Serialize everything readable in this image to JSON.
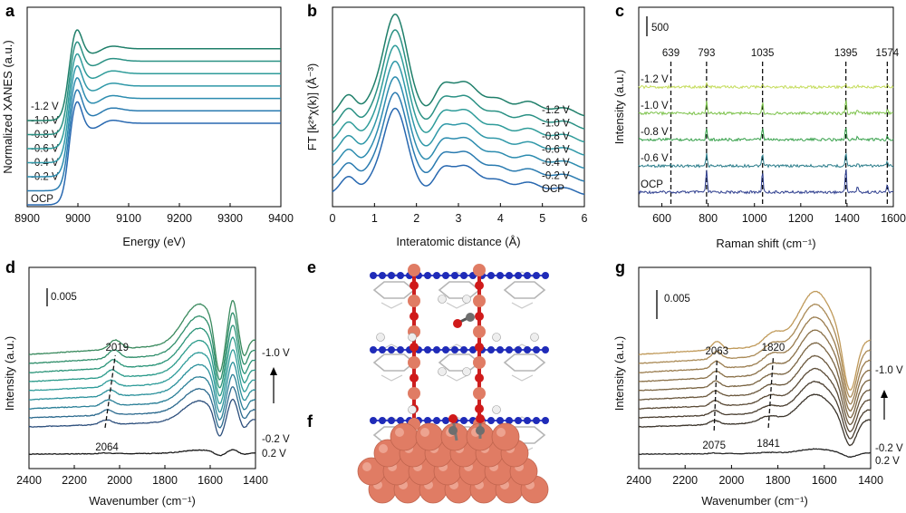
{
  "panel_letters": [
    "a",
    "b",
    "c",
    "d",
    "e",
    "f",
    "g"
  ],
  "colors": {
    "a_b_curves": [
      "#2868b0",
      "#2a7bb0",
      "#2c8caf",
      "#2f98a8",
      "#2f9c9a",
      "#2a9184",
      "#1f7f6a"
    ],
    "c_curves": [
      "#2f3f8f",
      "#2a7c8a",
      "#36a04a",
      "#7cc24a",
      "#c4dc5a"
    ],
    "d_curves": [
      "#1a1a1a",
      "#2d4f7c",
      "#2c6a8e",
      "#2a7f97",
      "#2a909b",
      "#2f9c9a",
      "#2a9a8a",
      "#2a9478",
      "#2f8e6a",
      "#3a8a5e"
    ],
    "g_curves": [
      "#262626",
      "#3a332a",
      "#4a3e30",
      "#5a4a36",
      "#6a573c",
      "#7a6442",
      "#8a7048",
      "#9a7c4e",
      "#aa8a56",
      "#c09a5a"
    ],
    "dashed": "#111111",
    "cu_atom": "#e07c64",
    "c_atom": "#6e6e6e",
    "o_atom": "#d01a1a",
    "n_atom": "#1f2bb8",
    "h_atom": "#eeeeee",
    "frame": "#d8d8d8"
  },
  "chart_data": [
    {
      "panel": "a",
      "type": "line",
      "title": "",
      "xlabel": "Energy (eV)",
      "ylabel": "Normalized XANES (a.u.)",
      "xlim": [
        8900,
        9400
      ],
      "xticks": [
        "8900",
        "9000",
        "9100",
        "9200",
        "9300",
        "9400"
      ],
      "series": [
        {
          "name": "OCP"
        },
        {
          "name": "-0.2 V"
        },
        {
          "name": "-0.4 V"
        },
        {
          "name": "-0.6 V"
        },
        {
          "name": "-0.8 V"
        },
        {
          "name": "-1.0 V"
        },
        {
          "name": "-1.2 V"
        }
      ],
      "edge_energy": 8980,
      "white_line_energy": 8997,
      "offset_step": 0.1
    },
    {
      "panel": "b",
      "type": "line",
      "title": "",
      "xlabel": "Interatomic distance (Å)",
      "ylabel": "FT [k²*χ(k)] (Å⁻³)",
      "ylabel_main": "FT [",
      "ylabel_mid": "χ(",
      "ylabel_end": ")] (Å",
      "xlim": [
        0,
        6
      ],
      "xticks": [
        "0",
        "1",
        "2",
        "3",
        "4",
        "5",
        "6"
      ],
      "series": [
        {
          "name": "OCP"
        },
        {
          "name": "-0.2 V"
        },
        {
          "name": "-0.4 V"
        },
        {
          "name": "-0.6 V"
        },
        {
          "name": "-0.8 V"
        },
        {
          "name": "-1.0 V"
        },
        {
          "name": "-1.2 V"
        }
      ],
      "peaks_r": [
        1.5,
        2.6,
        3.2,
        4.6
      ],
      "peak_heights": [
        1.0,
        0.25,
        0.32,
        0.1
      ]
    },
    {
      "panel": "c",
      "type": "line",
      "title": "",
      "xlabel": "Raman shift (cm⁻¹)",
      "ylabel": "Intensity (a.u.)",
      "xlim": [
        500,
        1600
      ],
      "xticks": [
        "600",
        "800",
        "1000",
        "1200",
        "1400",
        "1600"
      ],
      "scale_bar": "500",
      "series": [
        {
          "name": "OCP"
        },
        {
          "name": "-0.6 V"
        },
        {
          "name": "-0.8 V"
        },
        {
          "name": "-1.0 V"
        },
        {
          "name": "-1.2 V"
        }
      ],
      "peaks": [
        639,
        793,
        1035,
        1395,
        1574
      ],
      "peak_labels": [
        "639",
        "793",
        "1035",
        "1395",
        "1574"
      ],
      "peak_heights": [
        0.05,
        0.9,
        0.85,
        1.0,
        0.3
      ]
    },
    {
      "panel": "d",
      "type": "line",
      "title": "",
      "xlabel": "Wavenumber (cm⁻¹)",
      "ylabel": "Intensity (a.u.)",
      "xlim": [
        2400,
        1400
      ],
      "xticks": [
        "2400",
        "2200",
        "2000",
        "1800",
        "1600",
        "1400"
      ],
      "scale_bar": "0.005",
      "labels": {
        "top": "-1.0 V",
        "mid": "-0.2 V",
        "bottom": "0.2 V",
        "peak_top": "2019",
        "peak_bottom": "2064"
      },
      "curve_count": 10,
      "co_band": [
        2064,
        2019
      ]
    },
    {
      "panel": "g",
      "type": "line",
      "title": "",
      "xlabel": "Wavenumber (cm⁻¹)",
      "ylabel": "Intensity (a.u.)",
      "xlim": [
        2400,
        1400
      ],
      "xticks": [
        "2400",
        "2200",
        "2000",
        "1800",
        "1600",
        "1400"
      ],
      "scale_bar": "0.005",
      "labels": {
        "top": "-1.0 V",
        "mid": "-0.2 V",
        "bottom": "0.2 V",
        "peak1_top": "2063",
        "peak2_top": "1820",
        "peak1_bottom": "2075",
        "peak2_bottom": "1841"
      },
      "curve_count": 10,
      "band1": [
        2075,
        2063
      ],
      "band2": [
        1841,
        1820
      ]
    }
  ]
}
